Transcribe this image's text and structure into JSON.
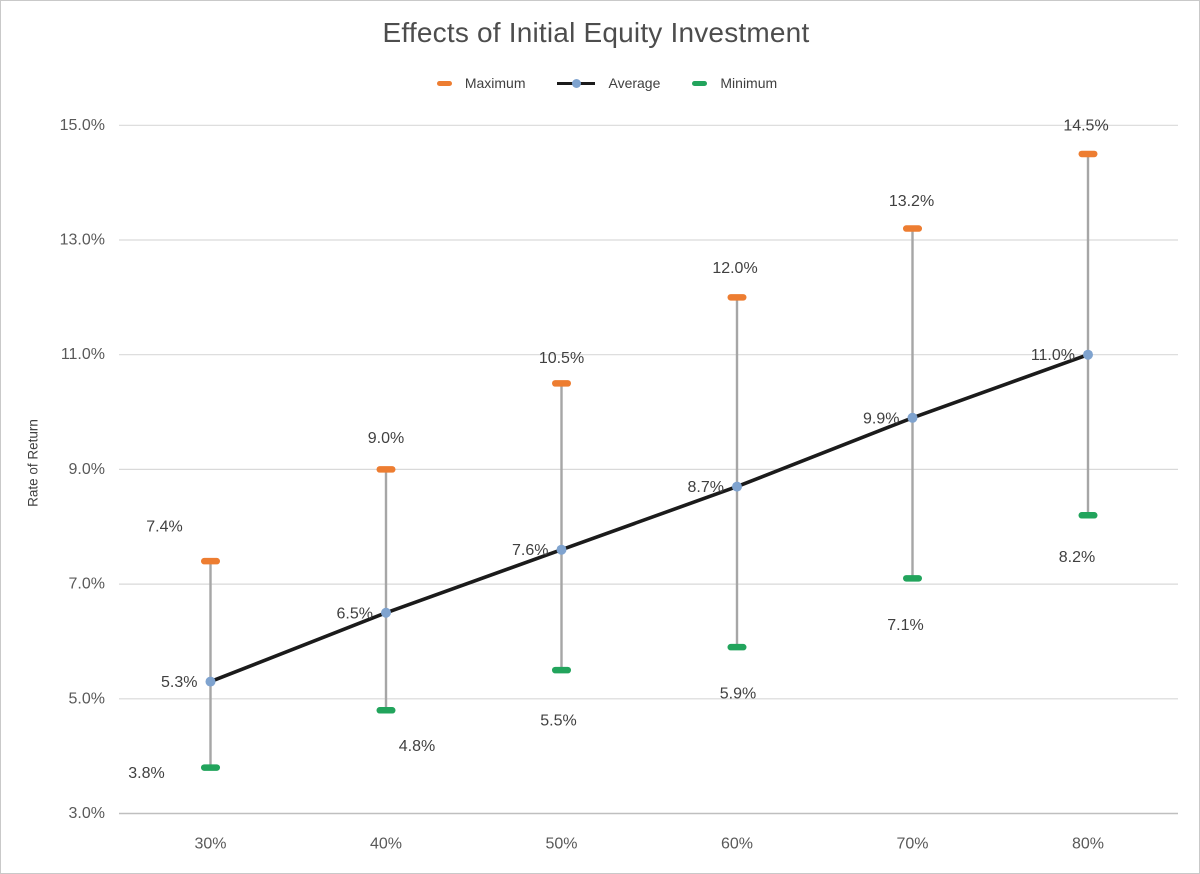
{
  "chart_data": {
    "type": "line",
    "subtype": "average line with min-max high-low range bars",
    "title": "Effects of Initial Equity Investment",
    "xlabel": "",
    "ylabel": "Rate of Return",
    "categories": [
      "30%",
      "40%",
      "50%",
      "60%",
      "70%",
      "80%"
    ],
    "series": [
      {
        "name": "Maximum",
        "marker": "dash",
        "values": [
          7.4,
          9.0,
          10.5,
          12.0,
          13.2,
          14.5
        ],
        "labels": [
          "7.4%",
          "9.0%",
          "10.5%",
          "12.0%",
          "13.2%",
          "14.5%"
        ]
      },
      {
        "name": "Average",
        "marker": "line-with-dot",
        "values": [
          5.3,
          6.5,
          7.6,
          8.7,
          9.9,
          11.0
        ],
        "labels": [
          "5.3%",
          "6.5%",
          "7.6%",
          "8.7%",
          "9.9%",
          "11.0%"
        ]
      },
      {
        "name": "Minimum",
        "marker": "dash",
        "values": [
          3.8,
          4.8,
          5.5,
          5.9,
          7.1,
          8.2
        ],
        "labels": [
          "3.8%",
          "4.8%",
          "5.5%",
          "5.9%",
          "7.1%",
          "8.2%"
        ]
      }
    ],
    "y_ticks": [
      "3.0%",
      "5.0%",
      "7.0%",
      "9.0%",
      "11.0%",
      "13.0%",
      "15.0%"
    ],
    "y_tick_values": [
      3,
      5,
      7,
      9,
      11,
      13,
      15
    ],
    "ylim": [
      3,
      15
    ],
    "grid": "horizontal",
    "legend_position": "top"
  },
  "colors": {
    "maximum": "#ED7D31",
    "minimum": "#22A45C",
    "average_point": "#7FA3CF",
    "average_line": "#1B1B1B",
    "stem": "#A6A6A6",
    "gridline": "#D9D9D9",
    "axis_line": "#BFBFBF",
    "tick_text": "#595959",
    "label_text": "#404040",
    "title_text": "#4D4D4D"
  }
}
